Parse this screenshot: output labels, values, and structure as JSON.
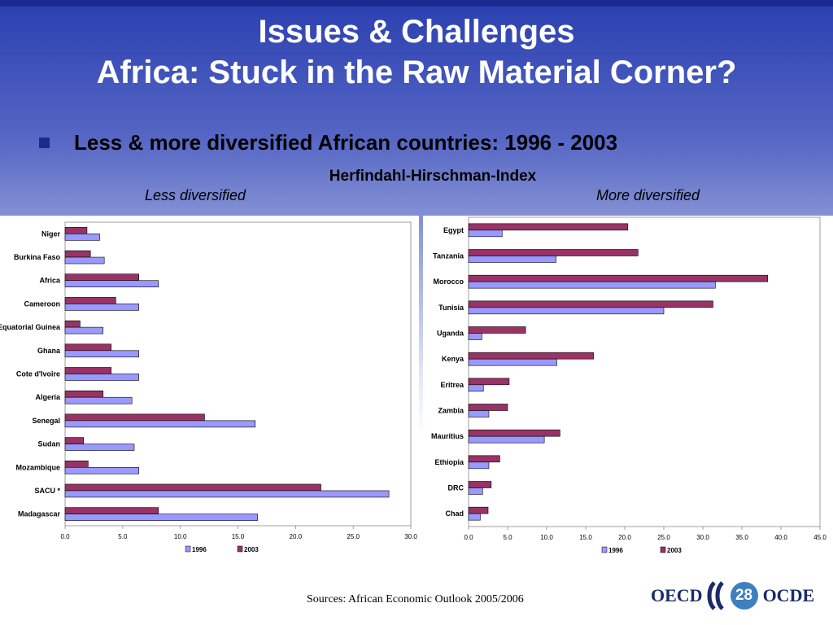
{
  "slide": {
    "title_line1": "Issues & Challenges",
    "title_line2": "Africa: Stuck in the Raw Material Corner?",
    "bullet": "Less & more diversified African countries: 1996 - 2003",
    "index_title": "Herfindahl-Hirschman-Index",
    "left_caption": "Less diversified",
    "right_caption": "More diversified",
    "sources": "Sources: African Economic Outlook 2005/2006",
    "logo_left": "OECD",
    "logo_right": "OCDE",
    "page_number": "28",
    "colors": {
      "series_1996": "#9999ff",
      "series_2003": "#993366",
      "title_bar": "#1a2a90"
    }
  },
  "chart_data": [
    {
      "type": "bar",
      "orientation": "horizontal",
      "categories": [
        "Niger",
        "Burkina Faso",
        "Africa",
        "Cameroon",
        "Equatorial Guinea",
        "Ghana",
        "Cote d'Ivoire",
        "Algeria",
        "Senegal",
        "Sudan",
        "Mozambique",
        "SACU *",
        "Madagascar"
      ],
      "series": [
        {
          "name": "1996",
          "values": [
            3.0,
            3.4,
            8.1,
            6.4,
            3.3,
            6.4,
            6.4,
            5.8,
            16.5,
            6.0,
            6.4,
            28.1,
            16.7
          ]
        },
        {
          "name": "2003",
          "values": [
            1.9,
            2.2,
            6.4,
            4.4,
            1.3,
            4.0,
            4.0,
            3.3,
            12.1,
            1.6,
            2.0,
            22.2,
            8.1
          ]
        }
      ],
      "xlim": [
        0,
        30
      ],
      "ticks": [
        "0.0",
        "5.0",
        "10.0",
        "15.0",
        "20.0",
        "25.0",
        "30.0"
      ],
      "legend_position": "bottom",
      "grid": false
    },
    {
      "type": "bar",
      "orientation": "horizontal",
      "categories": [
        "Egypt",
        "Tanzania",
        "Morocco",
        "Tunisia",
        "Uganda",
        "Kenya",
        "Eritrea",
        "Zambia",
        "Mauritius",
        "Ethiopia",
        "DRC",
        "Chad"
      ],
      "series": [
        {
          "name": "1996",
          "values": [
            4.3,
            11.2,
            31.6,
            25.0,
            1.7,
            11.3,
            1.9,
            2.6,
            9.7,
            2.6,
            1.8,
            1.5
          ]
        },
        {
          "name": "2003",
          "values": [
            20.4,
            21.7,
            38.3,
            31.3,
            7.3,
            16.0,
            5.2,
            5.0,
            11.7,
            4.0,
            2.9,
            2.5
          ]
        }
      ],
      "xlim": [
        0,
        45
      ],
      "ticks": [
        "0.0",
        "5.0",
        "10.0",
        "15.0",
        "20.0",
        "25.0",
        "30.0",
        "35.0",
        "40.0",
        "45.0"
      ],
      "legend_position": "bottom",
      "grid": false
    }
  ]
}
